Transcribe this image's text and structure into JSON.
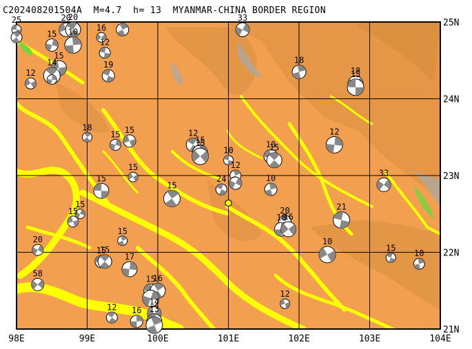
{
  "title": "C202408201504A  M=4.7  h= 13  MYANMAR-CHINA BORDER REGION",
  "lon_labels": [
    "98E",
    "99E",
    "100E",
    "101E",
    "102E",
    "103E",
    "104E"
  ],
  "lat_labels": [
    "21N",
    "22N",
    "23N",
    "24N",
    "25N"
  ],
  "extent": {
    "lon": [
      98,
      104
    ],
    "lat": [
      21,
      25
    ]
  },
  "colors": {
    "land": "#f2a050",
    "low": "#ffff00",
    "high": "#d08a3a",
    "peak": "#a9a9a9",
    "green": "#7fcf3f",
    "frame": "#000000"
  },
  "epicenter": {
    "lon": 101.0,
    "lat": 22.64
  },
  "events": [
    {
      "lon": 98.0,
      "lat": 24.9,
      "d": "25"
    },
    {
      "lon": 98.0,
      "lat": 24.8,
      "d": ""
    },
    {
      "lon": 98.5,
      "lat": 24.7,
      "d": "15"
    },
    {
      "lon": 98.7,
      "lat": 24.9,
      "d": "20"
    },
    {
      "lon": 98.8,
      "lat": 24.9,
      "d": "20"
    },
    {
      "lon": 98.8,
      "lat": 24.7,
      "d": "10"
    },
    {
      "lon": 99.2,
      "lat": 24.8,
      "d": "16"
    },
    {
      "lon": 99.25,
      "lat": 24.6,
      "d": "12"
    },
    {
      "lon": 99.5,
      "lat": 24.9,
      "d": ""
    },
    {
      "lon": 101.2,
      "lat": 24.9,
      "d": "33"
    },
    {
      "lon": 98.6,
      "lat": 24.4,
      "d": "15"
    },
    {
      "lon": 98.5,
      "lat": 24.3,
      "d": "14"
    },
    {
      "lon": 98.5,
      "lat": 24.25,
      "d": ""
    },
    {
      "lon": 98.2,
      "lat": 24.2,
      "d": "12"
    },
    {
      "lon": 99.3,
      "lat": 24.3,
      "d": "19"
    },
    {
      "lon": 102.0,
      "lat": 24.35,
      "d": "18"
    },
    {
      "lon": 102.8,
      "lat": 24.2,
      "d": "18"
    },
    {
      "lon": 102.8,
      "lat": 24.15,
      "d": "15"
    },
    {
      "lon": 99.0,
      "lat": 23.5,
      "d": "18"
    },
    {
      "lon": 99.4,
      "lat": 23.4,
      "d": "15"
    },
    {
      "lon": 99.6,
      "lat": 23.45,
      "d": "15"
    },
    {
      "lon": 100.5,
      "lat": 23.4,
      "d": "12"
    },
    {
      "lon": 100.6,
      "lat": 23.3,
      "d": "15"
    },
    {
      "lon": 100.6,
      "lat": 23.25,
      "d": "15"
    },
    {
      "lon": 101.0,
      "lat": 23.2,
      "d": "10"
    },
    {
      "lon": 101.1,
      "lat": 23.0,
      "d": "12"
    },
    {
      "lon": 101.1,
      "lat": 22.9,
      "d": ""
    },
    {
      "lon": 101.6,
      "lat": 23.25,
      "d": "10"
    },
    {
      "lon": 101.65,
      "lat": 23.2,
      "d": "15"
    },
    {
      "lon": 102.5,
      "lat": 23.4,
      "d": "12"
    },
    {
      "lon": 99.65,
      "lat": 22.98,
      "d": "15"
    },
    {
      "lon": 100.9,
      "lat": 22.82,
      "d": "24"
    },
    {
      "lon": 101.6,
      "lat": 22.82,
      "d": "10"
    },
    {
      "lon": 103.2,
      "lat": 22.88,
      "d": "33"
    },
    {
      "lon": 99.2,
      "lat": 22.8,
      "d": "15"
    },
    {
      "lon": 100.2,
      "lat": 22.7,
      "d": "15"
    },
    {
      "lon": 98.9,
      "lat": 22.5,
      "d": "15"
    },
    {
      "lon": 98.8,
      "lat": 22.4,
      "d": "15"
    },
    {
      "lon": 101.8,
      "lat": 22.4,
      "d": "20"
    },
    {
      "lon": 101.75,
      "lat": 22.3,
      "d": "18"
    },
    {
      "lon": 101.85,
      "lat": 22.3,
      "d": "16"
    },
    {
      "lon": 102.6,
      "lat": 22.42,
      "d": "21"
    },
    {
      "lon": 99.5,
      "lat": 22.15,
      "d": "15"
    },
    {
      "lon": 98.3,
      "lat": 22.03,
      "d": "20"
    },
    {
      "lon": 99.2,
      "lat": 21.88,
      "d": "15"
    },
    {
      "lon": 99.25,
      "lat": 21.88,
      "d": "15"
    },
    {
      "lon": 99.6,
      "lat": 21.78,
      "d": "17"
    },
    {
      "lon": 102.4,
      "lat": 21.97,
      "d": "10"
    },
    {
      "lon": 103.3,
      "lat": 21.93,
      "d": "15"
    },
    {
      "lon": 103.7,
      "lat": 21.85,
      "d": "10"
    },
    {
      "lon": 98.3,
      "lat": 21.58,
      "d": "58"
    },
    {
      "lon": 99.9,
      "lat": 21.5,
      "d": "15"
    },
    {
      "lon": 100.0,
      "lat": 21.5,
      "d": "16"
    },
    {
      "lon": 99.9,
      "lat": 21.4,
      "d": ""
    },
    {
      "lon": 101.8,
      "lat": 21.33,
      "d": "12"
    },
    {
      "lon": 99.35,
      "lat": 21.15,
      "d": "12"
    },
    {
      "lon": 99.7,
      "lat": 21.1,
      "d": "16"
    },
    {
      "lon": 99.95,
      "lat": 21.2,
      "d": "14"
    },
    {
      "lon": 99.95,
      "lat": 21.1,
      "d": "13"
    },
    {
      "lon": 99.95,
      "lat": 21.05,
      "d": ""
    }
  ]
}
